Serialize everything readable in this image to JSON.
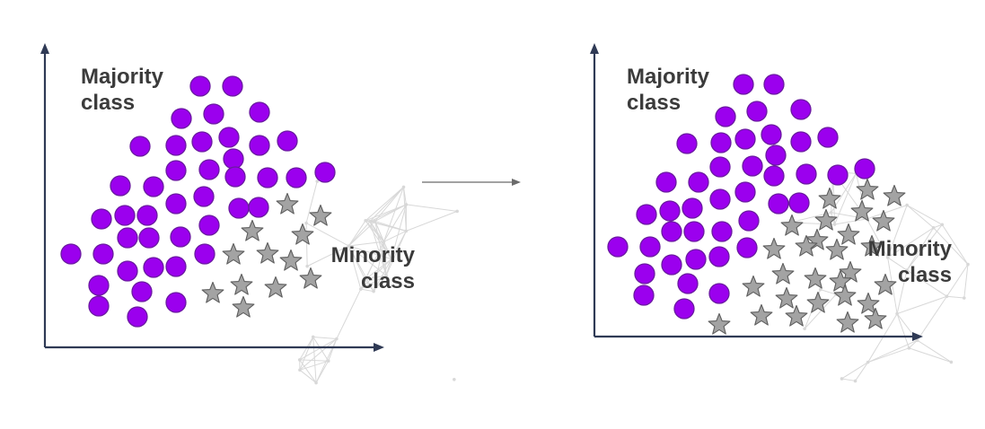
{
  "colors": {
    "majority_fill": "#9b00ee",
    "majority_stroke": "#6a1aa0",
    "minority_fill": "#a3a3a3",
    "minority_stroke": "#5e5e5e",
    "axis": "#2f3a55",
    "arrow": "#6b6b6b",
    "network": "#d8d8d8"
  },
  "transition_arrow": {
    "direction": "right",
    "meaning": "resampling"
  },
  "panels": [
    {
      "id": "before",
      "majority_label": "Majority\nclass",
      "minority_label": "Minority\nclass",
      "majority_count": 43,
      "minority_count": 13
    },
    {
      "id": "after",
      "majority_label": "Majority\nclass",
      "minority_label": "Minority\nclass",
      "majority_count": 43,
      "minority_count": 37
    }
  ]
}
